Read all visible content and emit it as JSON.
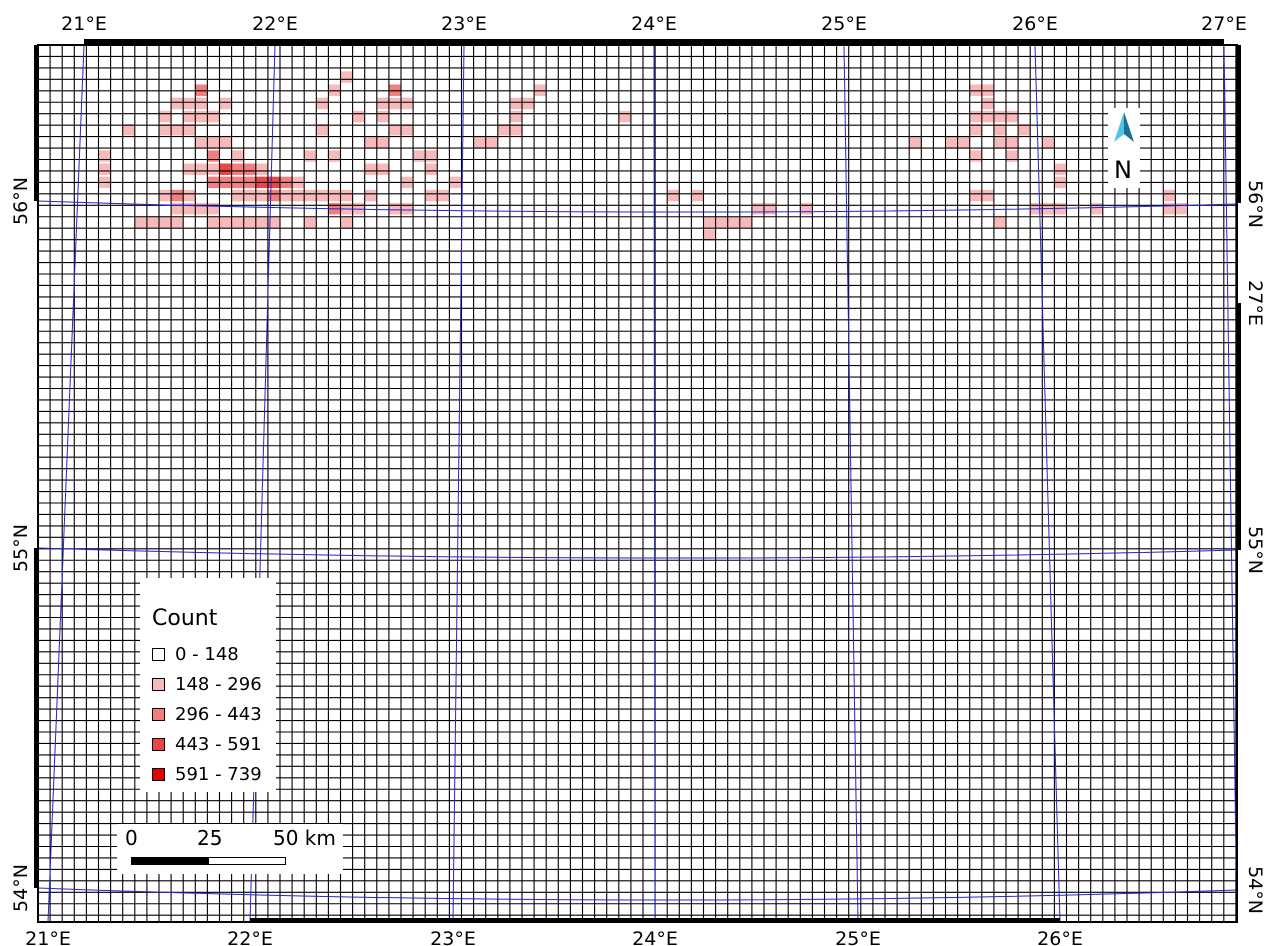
{
  "top_lon_labels": [
    "21°E",
    "22°E",
    "23°E",
    "24°E",
    "25°E",
    "26°E",
    "27°E"
  ],
  "bottom_lon_labels": [
    "21°E",
    "22°E",
    "23°E",
    "24°E",
    "25°E",
    "26°E"
  ],
  "left_lat_labels": [
    "56°N",
    "55°N",
    "54°N"
  ],
  "right_lat_labels": [
    "56°N",
    "55°N",
    "54°N"
  ],
  "right_extra_lon_label": "27°E",
  "legend": {
    "title": "Count",
    "classes": [
      {
        "label": "0 - 148",
        "color": "#ffffff"
      },
      {
        "label": "148 - 296",
        "color": "#f7b9b9"
      },
      {
        "label": "296 - 443",
        "color": "#f17f7f"
      },
      {
        "label": "443 - 591",
        "color": "#ea4646"
      },
      {
        "label": "591 - 739",
        "color": "#e60000"
      }
    ]
  },
  "scalebar": {
    "labels": [
      "0",
      "25",
      "50 km"
    ]
  },
  "north_arrow": {
    "label": "N",
    "icon": "north-arrow-icon"
  },
  "colors": {
    "grid_line": "#000000",
    "graticule": "#2323d8",
    "frame": "#000000"
  },
  "chart_data": {
    "type": "heatmap",
    "description_source": "grid cell counts (class index 1-4), cells not listed are class 0",
    "classes": [
      "0 - 148",
      "148 - 296",
      "296 - 443",
      "443 - 591",
      "591 - 739"
    ],
    "cells": [
      [
        13,
        3,
        2
      ],
      [
        13,
        4,
        1
      ],
      [
        13,
        5,
        1
      ],
      [
        14,
        5,
        1
      ],
      [
        10,
        5,
        1
      ],
      [
        10,
        6,
        1
      ],
      [
        11,
        4,
        1
      ],
      [
        11,
        6,
        1
      ],
      [
        12,
        4,
        1
      ],
      [
        12,
        5,
        1
      ],
      [
        12,
        6,
        1
      ],
      [
        13,
        7,
        1
      ],
      [
        14,
        7,
        1
      ],
      [
        15,
        4,
        1
      ],
      [
        15,
        7,
        1
      ],
      [
        16,
        8,
        1
      ],
      [
        14,
        8,
        2
      ],
      [
        12,
        9,
        1
      ],
      [
        13,
        9,
        1
      ],
      [
        14,
        9,
        1
      ],
      [
        15,
        9,
        3
      ],
      [
        16,
        9,
        2
      ],
      [
        17,
        9,
        2
      ],
      [
        18,
        9,
        1
      ],
      [
        14,
        10,
        2
      ],
      [
        15,
        10,
        2
      ],
      [
        16,
        10,
        2
      ],
      [
        17,
        10,
        2
      ],
      [
        18,
        10,
        3
      ],
      [
        19,
        10,
        3
      ],
      [
        20,
        10,
        2
      ],
      [
        21,
        10,
        1
      ],
      [
        7,
        6,
        1
      ],
      [
        5,
        8,
        1
      ],
      [
        5,
        9,
        1
      ],
      [
        5,
        10,
        1
      ],
      [
        10,
        11,
        1
      ],
      [
        11,
        11,
        2
      ],
      [
        12,
        11,
        1
      ],
      [
        11,
        12,
        1
      ],
      [
        12,
        12,
        1
      ],
      [
        13,
        12,
        1
      ],
      [
        14,
        12,
        1
      ],
      [
        8,
        13,
        1
      ],
      [
        9,
        13,
        1
      ],
      [
        10,
        13,
        1
      ],
      [
        11,
        13,
        1
      ],
      [
        14,
        13,
        1
      ],
      [
        15,
        13,
        1
      ],
      [
        16,
        13,
        1
      ],
      [
        17,
        13,
        1
      ],
      [
        18,
        13,
        1
      ],
      [
        19,
        13,
        1
      ],
      [
        16,
        11,
        1
      ],
      [
        17,
        11,
        1
      ],
      [
        18,
        11,
        1
      ],
      [
        19,
        11,
        2
      ],
      [
        20,
        11,
        1
      ],
      [
        21,
        11,
        1
      ],
      [
        22,
        11,
        1
      ],
      [
        23,
        11,
        1
      ],
      [
        24,
        11,
        1
      ],
      [
        25,
        11,
        1
      ],
      [
        22,
        8,
        1
      ],
      [
        24,
        8,
        1
      ],
      [
        28,
        4,
        1
      ],
      [
        29,
        4,
        1
      ],
      [
        30,
        4,
        1
      ],
      [
        26,
        5,
        1
      ],
      [
        28,
        5,
        1
      ],
      [
        29,
        6,
        1
      ],
      [
        30,
        6,
        1
      ],
      [
        27,
        7,
        1
      ],
      [
        28,
        7,
        1
      ],
      [
        24,
        3,
        1
      ],
      [
        25,
        2,
        1
      ],
      [
        23,
        4,
        1
      ],
      [
        29,
        3,
        2
      ],
      [
        23,
        6,
        1
      ],
      [
        27,
        9,
        1
      ],
      [
        31,
        8,
        1
      ],
      [
        32,
        8,
        1
      ],
      [
        36,
        7,
        1
      ],
      [
        37,
        7,
        1
      ],
      [
        32,
        9,
        1
      ],
      [
        34,
        10,
        1
      ],
      [
        30,
        10,
        1
      ],
      [
        27,
        11,
        1
      ],
      [
        29,
        12,
        1
      ],
      [
        30,
        12,
        1
      ],
      [
        32,
        11,
        1
      ],
      [
        33,
        11,
        1
      ],
      [
        24,
        12,
        2
      ],
      [
        25,
        12,
        1
      ],
      [
        26,
        12,
        1
      ],
      [
        22,
        13,
        1
      ],
      [
        25,
        13,
        1
      ],
      [
        28,
        9,
        1
      ],
      [
        39,
        4,
        1
      ],
      [
        39,
        5,
        1
      ],
      [
        38,
        6,
        1
      ],
      [
        39,
        6,
        1
      ],
      [
        40,
        4,
        1
      ],
      [
        41,
        3,
        1
      ],
      [
        48,
        5,
        1
      ],
      [
        52,
        11,
        1
      ],
      [
        54,
        11,
        1
      ],
      [
        55,
        14,
        1
      ],
      [
        55,
        13,
        1
      ],
      [
        56,
        13,
        1
      ],
      [
        57,
        13,
        1
      ],
      [
        58,
        13,
        1
      ],
      [
        59,
        12,
        1
      ],
      [
        60,
        12,
        1
      ],
      [
        63,
        12,
        1
      ],
      [
        72,
        7,
        1
      ],
      [
        75,
        7,
        1
      ],
      [
        76,
        7,
        1
      ],
      [
        77,
        6,
        1
      ],
      [
        77,
        5,
        1
      ],
      [
        77,
        3,
        1
      ],
      [
        78,
        3,
        1
      ],
      [
        78,
        4,
        1
      ],
      [
        78,
        5,
        1
      ],
      [
        79,
        5,
        1
      ],
      [
        80,
        5,
        1
      ],
      [
        79,
        6,
        1
      ],
      [
        79,
        7,
        1
      ],
      [
        80,
        7,
        1
      ],
      [
        81,
        6,
        1
      ],
      [
        80,
        8,
        1
      ],
      [
        83,
        7,
        1
      ],
      [
        77,
        8,
        1
      ],
      [
        77,
        11,
        1
      ],
      [
        78,
        11,
        1
      ],
      [
        79,
        13,
        1
      ],
      [
        82,
        12,
        1
      ],
      [
        83,
        12,
        1
      ],
      [
        84,
        12,
        1
      ],
      [
        87,
        12,
        1
      ],
      [
        90,
        10,
        1
      ],
      [
        93,
        12,
        1
      ],
      [
        93,
        11,
        1
      ],
      [
        94,
        12,
        1
      ],
      [
        84,
        9,
        1
      ],
      [
        84,
        10,
        1
      ]
    ]
  }
}
